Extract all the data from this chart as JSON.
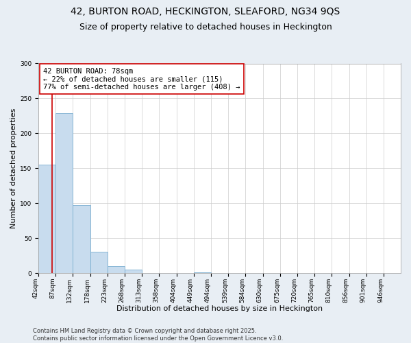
{
  "title": "42, BURTON ROAD, HECKINGTON, SLEAFORD, NG34 9QS",
  "subtitle": "Size of property relative to detached houses in Heckington",
  "xlabel": "Distribution of detached houses by size in Heckington",
  "ylabel": "Number of detached properties",
  "bar_values": [
    155,
    229,
    97,
    31,
    10,
    5,
    0,
    0,
    0,
    1,
    0,
    0,
    0,
    0,
    0,
    0,
    0,
    0,
    0,
    0,
    0
  ],
  "bin_labels": [
    "42sqm",
    "87sqm",
    "132sqm",
    "178sqm",
    "223sqm",
    "268sqm",
    "313sqm",
    "358sqm",
    "404sqm",
    "449sqm",
    "494sqm",
    "539sqm",
    "584sqm",
    "630sqm",
    "675sqm",
    "720sqm",
    "765sqm",
    "810sqm",
    "856sqm",
    "901sqm",
    "946sqm"
  ],
  "bin_edges": [
    42,
    87,
    132,
    178,
    223,
    268,
    313,
    358,
    404,
    449,
    494,
    539,
    584,
    630,
    675,
    720,
    765,
    810,
    856,
    901,
    946,
    991
  ],
  "bar_color": "#c8dcee",
  "bar_edge_color": "#7aaed0",
  "property_line_x": 78,
  "property_line_color": "#cc0000",
  "annotation_text": "42 BURTON ROAD: 78sqm\n← 22% of detached houses are smaller (115)\n77% of semi-detached houses are larger (408) →",
  "annotation_box_color": "#ffffff",
  "annotation_box_edge_color": "#cc0000",
  "ylim": [
    0,
    300
  ],
  "yticks": [
    0,
    50,
    100,
    150,
    200,
    250,
    300
  ],
  "footer_line1": "Contains HM Land Registry data © Crown copyright and database right 2025.",
  "footer_line2": "Contains public sector information licensed under the Open Government Licence v3.0.",
  "background_color": "#e8eef4",
  "plot_bg_color": "#ffffff",
  "title_fontsize": 10,
  "subtitle_fontsize": 9,
  "axis_label_fontsize": 8,
  "tick_fontsize": 6.5,
  "annotation_fontsize": 7.5,
  "footer_fontsize": 6
}
